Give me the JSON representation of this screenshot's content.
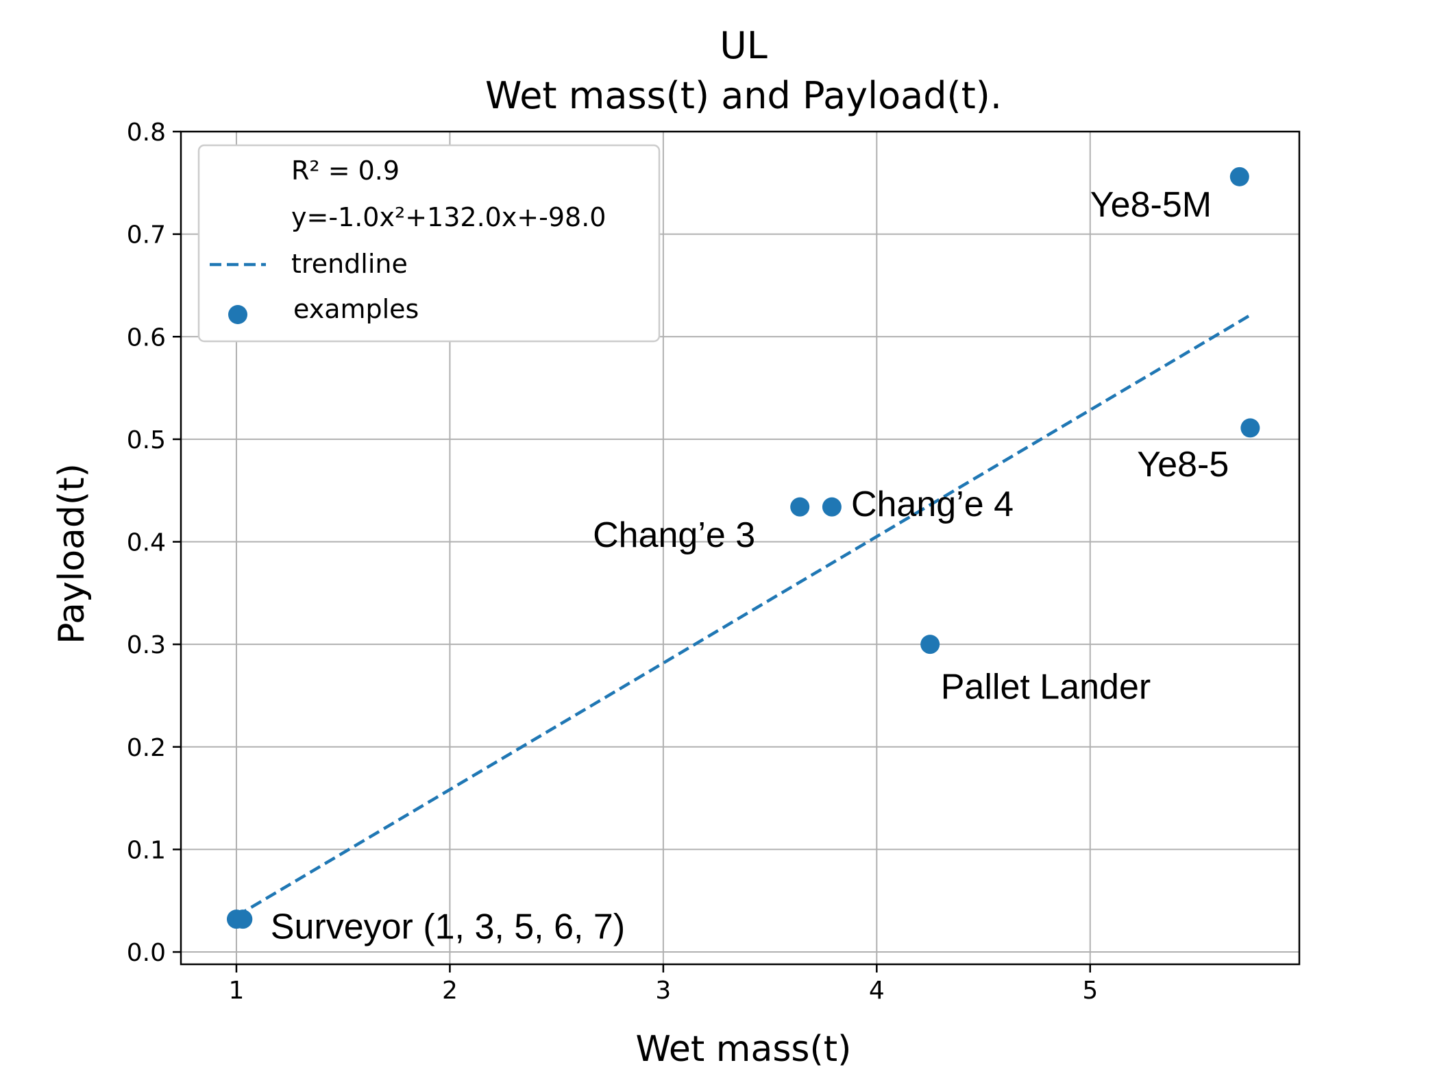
{
  "chart_data": {
    "type": "scatter",
    "title": [
      "UL",
      "Wet mass(t) and Payload(t)."
    ],
    "xlabel": "Wet mass(t)",
    "ylabel": "Payload(t)",
    "xlim": [
      0.74,
      5.98
    ],
    "ylim": [
      -0.012,
      0.8
    ],
    "xticks": [
      1,
      2,
      3,
      4,
      5
    ],
    "xtick_labels": [
      "1",
      "2",
      "3",
      "4",
      "5"
    ],
    "yticks": [
      0.0,
      0.1,
      0.2,
      0.3,
      0.4,
      0.5,
      0.6,
      0.7,
      0.8
    ],
    "ytick_labels": [
      "0.0",
      "0.1",
      "0.2",
      "0.3",
      "0.4",
      "0.5",
      "0.6",
      "0.7",
      "0.8"
    ],
    "grid": true,
    "legend": {
      "placement": "top-left",
      "entries": [
        "R² = 0.9",
        "y=-1.0x²+132.0x+-98.0",
        "trendline",
        "examples"
      ]
    },
    "accent_color": "#1f77b4",
    "trendline": {
      "name": "trendline",
      "style": "dashed",
      "x": [
        1.0,
        5.75
      ],
      "y": [
        0.035,
        0.621
      ]
    },
    "series": [
      {
        "name": "examples",
        "points": [
          {
            "x": 1.0,
            "y": 0.032
          },
          {
            "x": 1.03,
            "y": 0.032
          },
          {
            "x": 3.64,
            "y": 0.434
          },
          {
            "x": 3.79,
            "y": 0.434
          },
          {
            "x": 4.25,
            "y": 0.3
          },
          {
            "x": 5.7,
            "y": 0.756
          },
          {
            "x": 5.75,
            "y": 0.511
          }
        ]
      }
    ],
    "annotations": [
      {
        "text": "Surveyor (1, 3, 5, 6, 7)",
        "x": 1.16,
        "y": 0.013
      },
      {
        "text": "Chang’e 3",
        "x": 2.67,
        "y": 0.395
      },
      {
        "text": "Chang’e 4",
        "x": 3.88,
        "y": 0.425
      },
      {
        "text": "Pallet Lander",
        "x": 4.3,
        "y": 0.247
      },
      {
        "text": "Ye8-5M",
        "x": 5.0,
        "y": 0.717
      },
      {
        "text": "Ye8-5",
        "x": 5.22,
        "y": 0.464
      }
    ]
  }
}
